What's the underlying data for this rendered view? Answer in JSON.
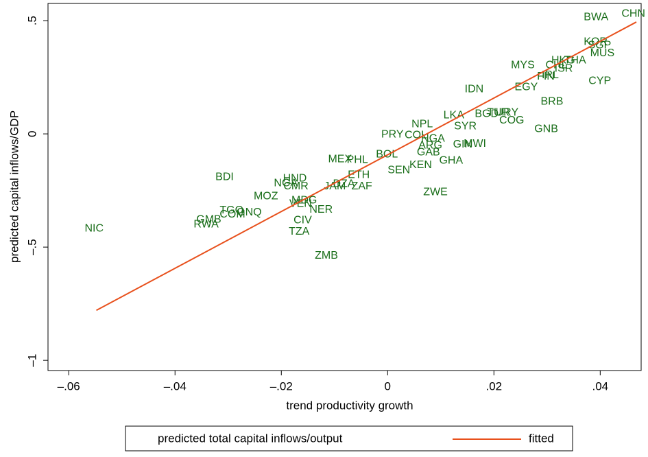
{
  "chart_data": {
    "type": "scatter",
    "x_label": "trend productivity growth",
    "y_label": "predicted capital inflows/GDP",
    "xlim": [
      -0.0639,
      0.0477
    ],
    "ylim": [
      -1.045,
      0.576
    ],
    "xticks": [
      {
        "value": -0.06,
        "label": "–.06"
      },
      {
        "value": -0.04,
        "label": "–.04"
      },
      {
        "value": -0.02,
        "label": "–.02"
      },
      0,
      {
        "value": 0.02,
        "label": ".02"
      },
      {
        "value": 0.04,
        "label": ".04"
      }
    ],
    "yticks": [
      {
        "value": 0.5,
        "label": ".5"
      },
      0,
      {
        "value": -0.5,
        "label": "–.5"
      },
      {
        "value": -1,
        "label": "–1"
      }
    ],
    "series": [
      {
        "name": "predicted total capital inflows/output",
        "color": "#1a6e1a",
        "labels": [
          "BWA",
          "CHN",
          "KOR",
          "SGP",
          "MUS",
          "CYP",
          "MYS",
          "HKG",
          "THA",
          "CHL",
          "ISR",
          "IRL",
          "FIN",
          "EGY",
          "IDN",
          "BRB",
          "LKA",
          "BGD",
          "TUR",
          "URY",
          "COG",
          "SYR",
          "GNB",
          "NPL",
          "PRY",
          "COL",
          "NGA",
          "ARG",
          "GIN",
          "MWI",
          "GAB",
          "BOL",
          "MEX",
          "PHL",
          "GHA",
          "KEN",
          "SEN",
          "ETH",
          "BDI",
          "HND",
          "NGA",
          "CMR",
          "DZA",
          "JAM",
          "ZAF",
          "ZWE",
          "MOZ",
          "MDG",
          "VEN",
          "NER",
          "TGO",
          "GNQ",
          "COM",
          "GMB",
          "RWA",
          "CIV",
          "TZA",
          "ZMB",
          "NIC"
        ],
        "x": [
          0.0369,
          0.044,
          0.0369,
          0.0377,
          0.0381,
          0.0378,
          0.0232,
          0.0308,
          0.0332,
          0.0297,
          0.0314,
          0.029,
          0.0281,
          0.0239,
          0.0145,
          0.0288,
          0.0105,
          0.0164,
          0.0187,
          0.0203,
          0.021,
          0.0125,
          0.0276,
          0.0045,
          -0.0012,
          0.0032,
          0.0063,
          0.0058,
          0.0123,
          0.0143,
          0.0055,
          -0.0022,
          -0.0112,
          -0.0077,
          0.0097,
          0.0041,
          0,
          -0.0075,
          -0.0324,
          -0.0197,
          -0.0214,
          -0.0196,
          -0.0103,
          -0.012,
          -0.0068,
          0.0067,
          -0.0252,
          -0.0181,
          -0.0185,
          -0.0147,
          -0.0316,
          -0.0284,
          -0.0316,
          -0.036,
          -0.0365,
          -0.0177,
          -0.0186,
          -0.0137,
          -0.057
        ],
        "y": [
          0.515,
          0.53,
          0.406,
          0.391,
          0.355,
          0.233,
          0.303,
          0.324,
          0.324,
          0.303,
          0.288,
          0.258,
          0.252,
          0.206,
          0.197,
          0.142,
          0.082,
          0.088,
          0.094,
          0.094,
          0.058,
          0.033,
          0.021,
          0.042,
          -0.003,
          -0.006,
          -0.021,
          -0.052,
          -0.048,
          -0.045,
          -0.082,
          -0.091,
          -0.112,
          -0.115,
          -0.118,
          -0.139,
          -0.161,
          -0.182,
          -0.191,
          -0.197,
          -0.218,
          -0.233,
          -0.221,
          -0.233,
          -0.233,
          -0.258,
          -0.276,
          -0.294,
          -0.309,
          -0.336,
          -0.339,
          -0.348,
          -0.357,
          -0.379,
          -0.4,
          -0.382,
          -0.433,
          -0.539,
          -0.418
        ]
      },
      {
        "name": "fitted",
        "color": "#e8501c",
        "x": [
          -0.0548,
          0.0468
        ],
        "y": [
          -0.779,
          0.494
        ]
      }
    ]
  }
}
